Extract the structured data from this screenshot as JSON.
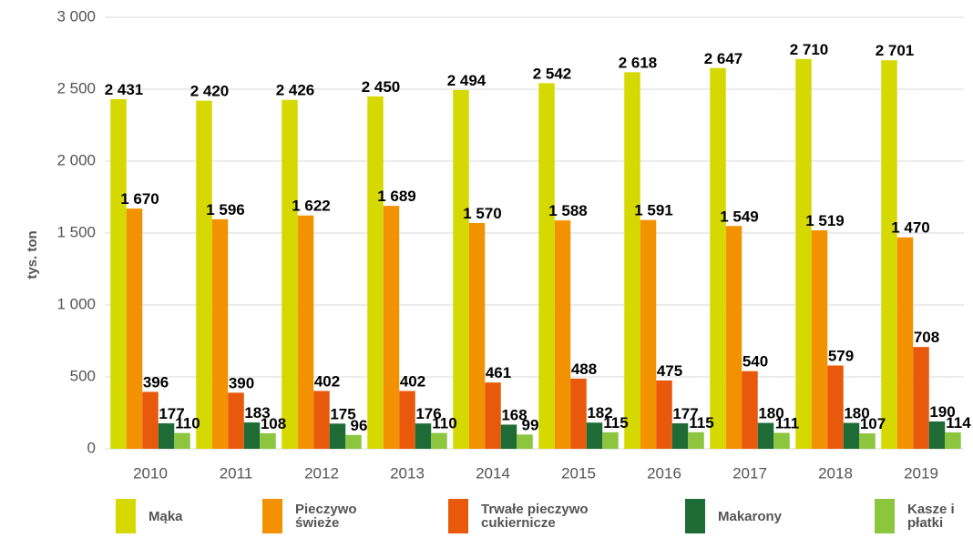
{
  "chart_data": {
    "type": "bar",
    "y_label": "tys. ton",
    "categories": [
      "2010",
      "2011",
      "2012",
      "2013",
      "2014",
      "2015",
      "2016",
      "2017",
      "2018",
      "2019"
    ],
    "series": [
      {
        "name": "Mąka",
        "color": "#d6d900",
        "values": [
          2431,
          2420,
          2426,
          2450,
          2494,
          2542,
          2618,
          2647,
          2710,
          2701
        ],
        "value_labels": [
          "2 431",
          "2 420",
          "2 426",
          "2 450",
          "2 494",
          "2 542",
          "2 618",
          "2 647",
          "2 710",
          "2 701"
        ]
      },
      {
        "name": "Pieczywo świeże",
        "color": "#f39200",
        "values": [
          1670,
          1596,
          1622,
          1689,
          1570,
          1588,
          1591,
          1549,
          1519,
          1470
        ],
        "value_labels": [
          "1 670",
          "1 596",
          "1 622",
          "1 689",
          "1 570",
          "1 588",
          "1 591",
          "1 549",
          "1 519",
          "1 470"
        ]
      },
      {
        "name": "Trwałe pieczywo cukiernicze",
        "color": "#e8590c",
        "values": [
          396,
          390,
          402,
          402,
          461,
          488,
          475,
          540,
          579,
          708
        ]
      },
      {
        "name": "Makarony",
        "color": "#1e6b36",
        "values": [
          177,
          183,
          175,
          176,
          168,
          182,
          177,
          180,
          180,
          190
        ]
      },
      {
        "name": "Kasze i płatki",
        "color": "#8cc63f",
        "values": [
          110,
          108,
          96,
          110,
          99,
          115,
          115,
          111,
          107,
          114
        ]
      }
    ],
    "ylim": [
      0,
      3000
    ],
    "yticks": [
      0,
      500,
      {
        "value": 1000,
        "label": "1 000"
      },
      {
        "value": 1500,
        "label": "1 500"
      },
      {
        "value": 2000,
        "label": "2 000"
      },
      {
        "value": 2500,
        "label": "2 500"
      },
      {
        "value": 3000,
        "label": "3 000"
      }
    ],
    "grid": true
  }
}
